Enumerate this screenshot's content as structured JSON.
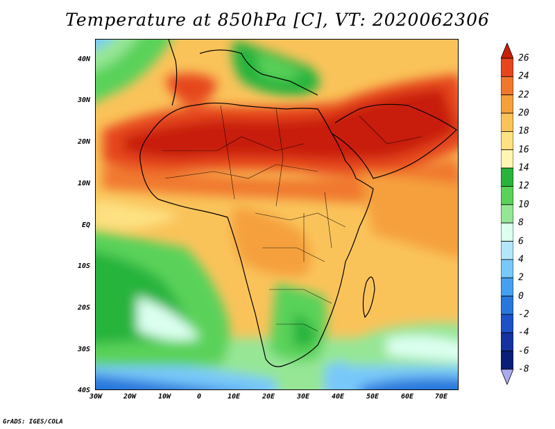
{
  "title": "Temperature at 850hPa [C], VT: 2020062306",
  "footer": "GrADS: IGES/COLA",
  "axes": {
    "lat_labels": [
      "40N",
      "30N",
      "20N",
      "10N",
      "EQ",
      "10S",
      "20S",
      "30S",
      "40S"
    ],
    "lon_labels": [
      "30W",
      "20W",
      "10W",
      "0",
      "10E",
      "20E",
      "30E",
      "40E",
      "50E",
      "60E",
      "70E"
    ]
  },
  "colorbar": {
    "labels": [
      "26",
      "24",
      "22",
      "20",
      "18",
      "16",
      "14",
      "12",
      "10",
      "8",
      "6",
      "4",
      "2",
      "0",
      "-2",
      "-4",
      "-6",
      "-8"
    ],
    "colors": [
      "#c81e0a",
      "#e6461e",
      "#f0782d",
      "#f5a03c",
      "#fac35a",
      "#fde182",
      "#fff5b4",
      "#28b43c",
      "#5ad25a",
      "#96e696",
      "#dcfff0",
      "#b4e6fa",
      "#78c8fa",
      "#46a0f0",
      "#2878dc",
      "#1e50c8",
      "#1432a0",
      "#0a1e78",
      "#aaaaf0"
    ]
  }
}
